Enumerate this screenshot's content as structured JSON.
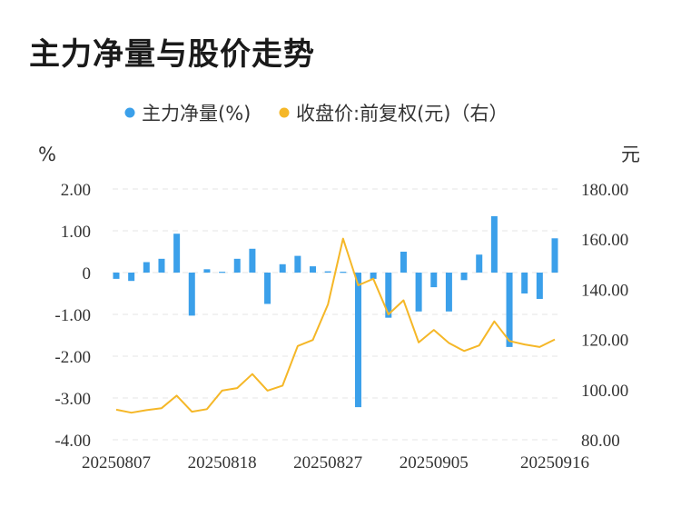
{
  "title": "主力净量与股价走势",
  "chart_data": {
    "type": "bar+line",
    "legend": {
      "placement": "top-center"
    },
    "left_axis": {
      "unit": "%",
      "ylim": [
        -4,
        2
      ],
      "ticks": [
        "2.00",
        "1.00",
        "0",
        "-1.00",
        "-2.00",
        "-3.00",
        "-4.00"
      ],
      "tick_values": [
        2,
        1,
        0,
        -1,
        -2,
        -3,
        -4
      ]
    },
    "right_axis": {
      "unit": "元",
      "ylim": [
        80,
        180
      ],
      "ticks": [
        "180.00",
        "160.00",
        "140.00",
        "120.00",
        "100.00",
        "80.00"
      ],
      "tick_values": [
        180,
        160,
        140,
        120,
        100,
        80
      ]
    },
    "x_tick_labels": [
      {
        "label": "20250807",
        "index": 0
      },
      {
        "label": "20250818",
        "index": 7
      },
      {
        "label": "20250827",
        "index": 14
      },
      {
        "label": "20250905",
        "index": 21
      },
      {
        "label": "20250916",
        "index": 29
      }
    ],
    "grid": true,
    "series": [
      {
        "name": "主力净量(%)",
        "type": "bar",
        "axis": "left",
        "color": "#3ba0ea",
        "values": [
          -0.15,
          -0.2,
          0.25,
          0.33,
          0.93,
          -1.03,
          0.08,
          0.02,
          0.33,
          0.57,
          -0.75,
          0.2,
          0.4,
          0.15,
          0.03,
          0.02,
          -3.22,
          -0.15,
          -1.08,
          0.5,
          -0.93,
          -0.35,
          -0.93,
          -0.18,
          0.43,
          1.35,
          -1.78,
          -0.5,
          -0.63,
          0.82
        ]
      },
      {
        "name": "收盘价:前复权(元)（右）",
        "type": "line",
        "axis": "right",
        "color": "#f5b727",
        "values": [
          92.0,
          90.8,
          91.8,
          92.6,
          97.6,
          91.2,
          92.2,
          99.6,
          100.6,
          106.2,
          99.6,
          101.6,
          117.4,
          119.8,
          134.0,
          160.2,
          141.6,
          144.2,
          130.0,
          135.6,
          118.8,
          123.8,
          118.6,
          115.4,
          117.6,
          127.2,
          119.4,
          118.0,
          117.0,
          120.0
        ]
      }
    ]
  }
}
